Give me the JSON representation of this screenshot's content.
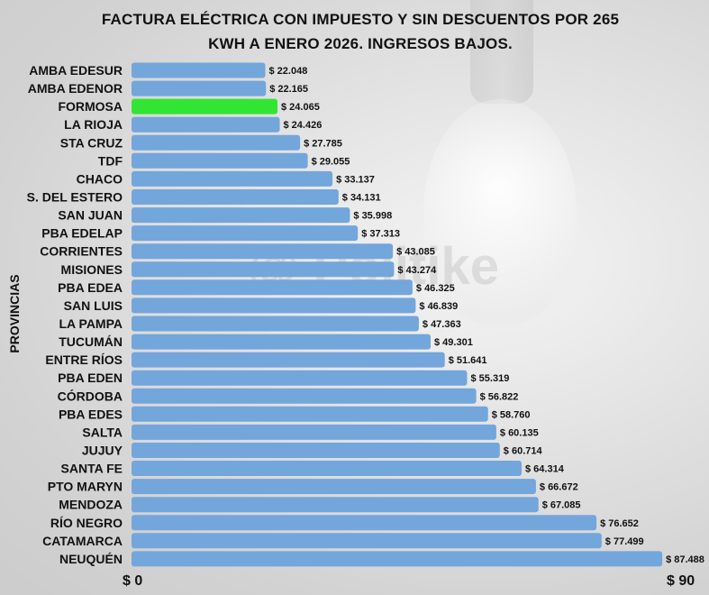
{
  "chart_data": {
    "type": "bar",
    "orientation": "horizontal",
    "title_lines": [
      "FACTURA ELÉCTRICA CON IMPUESTO Y SIN DESCUENTOS POR 265",
      "KWH A ENERO 2026. INGRESOS BAJOS."
    ],
    "ylabel": "PROVINCIAS",
    "xlim": [
      0,
      90
    ],
    "x_axis_labels": [
      "$ 0",
      "$ 90"
    ],
    "watermark": "@ Politike",
    "bar_color": "#73A6DB",
    "highlight_color": "#33E533",
    "highlight_category": "FORMOSA",
    "categories": [
      "AMBA EDESUR",
      "AMBA EDENOR",
      "FORMOSA",
      "LA RIOJA",
      "STA CRUZ",
      "TDF",
      "CHACO",
      "S. DEL ESTERO",
      "SAN JUAN",
      "PBA EDELAP",
      "CORRIENTES",
      "MISIONES",
      "PBA EDEA",
      "SAN LUIS",
      "LA PAMPA",
      "TUCUMÁN",
      "ENTRE RÍOS",
      "PBA EDEN",
      "CÓRDOBA",
      "PBA EDES",
      "SALTA",
      "JUJUY",
      "SANTA FE",
      "PTO MARYN",
      "MENDOZA",
      "RÍO NEGRO",
      "CATAMARCA",
      "NEUQUÉN"
    ],
    "values": [
      22048,
      22165,
      24065,
      24426,
      27785,
      29055,
      33137,
      34131,
      35998,
      37313,
      43085,
      43274,
      46325,
      46839,
      47363,
      49301,
      51641,
      55319,
      56822,
      58760,
      60135,
      60714,
      64314,
      66672,
      67085,
      76652,
      77499,
      87488
    ],
    "value_labels": [
      "$ 22.048",
      "$ 22.165",
      "$ 24.065",
      "$ 24.426",
      "$ 27.785",
      "$ 29.055",
      "$ 33.137",
      "$ 34.131",
      "$ 35.998",
      "$ 37.313",
      "$ 43.085",
      "$ 43.274",
      "$ 46.325",
      "$ 46.839",
      "$ 47.363",
      "$ 49.301",
      "$ 51.641",
      "$ 55.319",
      "$ 56.822",
      "$ 58.760",
      "$ 60.135",
      "$ 60.714",
      "$ 64.314",
      "$ 66.672",
      "$ 67.085",
      "$ 76.652",
      "$ 77.499",
      "$ 87.488"
    ]
  }
}
